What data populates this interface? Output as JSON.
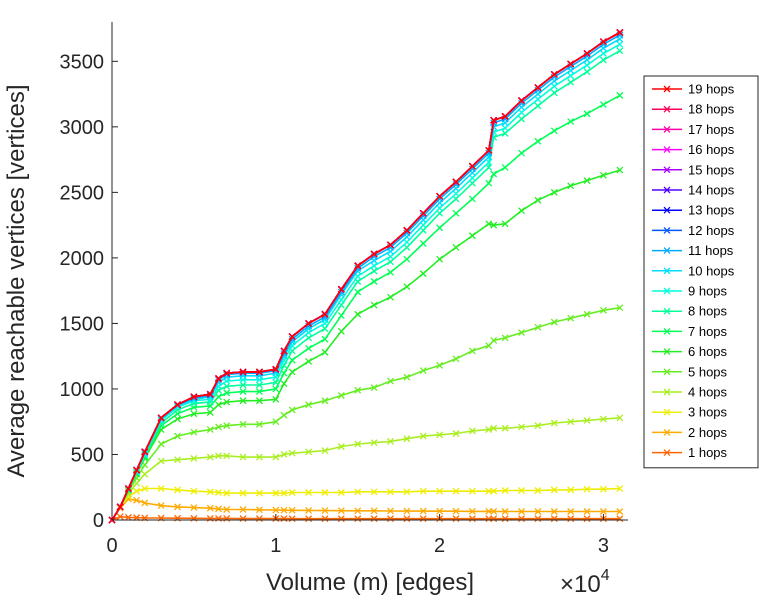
{
  "chart_data": {
    "type": "line",
    "xlabel": "Volume (m) [edges]",
    "ylabel": "Average reachable vertices [vertices]",
    "x_exponent_label": "×10",
    "x_exponent_power": "4",
    "xlim": [
      0,
      31500
    ],
    "ylim": [
      0,
      3800
    ],
    "xticks": [
      0,
      10000,
      20000,
      30000
    ],
    "xtick_labels": [
      "0",
      "1",
      "2",
      "3"
    ],
    "yticks": [
      0,
      500,
      1000,
      1500,
      2000,
      2500,
      3000,
      3500
    ],
    "ytick_labels": [
      "0",
      "500",
      "1000",
      "1500",
      "2000",
      "2500",
      "3000",
      "3500"
    ],
    "grid": false,
    "legend_position": "right",
    "marker": "x",
    "x": [
      0,
      500,
      1000,
      1500,
      2000,
      3000,
      4000,
      5000,
      6000,
      6500,
      7000,
      8000,
      9000,
      10000,
      10500,
      11000,
      12000,
      13000,
      14000,
      15000,
      16000,
      17000,
      18000,
      19000,
      20000,
      21000,
      22000,
      23000,
      23300,
      24000,
      25000,
      26000,
      27000,
      28000,
      29000,
      30000,
      31000
    ],
    "series": [
      {
        "name": "19 hops",
        "color": "#ff0000",
        "values": [
          0,
          100,
          240,
          380,
          520,
          780,
          880,
          940,
          960,
          1080,
          1120,
          1130,
          1130,
          1150,
          1290,
          1400,
          1500,
          1570,
          1760,
          1940,
          2030,
          2100,
          2210,
          2340,
          2470,
          2580,
          2700,
          2820,
          3050,
          3080,
          3200,
          3300,
          3400,
          3480,
          3560,
          3650,
          3720
        ]
      },
      {
        "name": "18 hops",
        "color": "#ff0055",
        "values": [
          0,
          100,
          240,
          380,
          520,
          780,
          880,
          940,
          960,
          1080,
          1120,
          1130,
          1130,
          1150,
          1290,
          1400,
          1500,
          1570,
          1760,
          1940,
          2030,
          2100,
          2210,
          2340,
          2470,
          2580,
          2700,
          2820,
          3050,
          3080,
          3200,
          3300,
          3400,
          3480,
          3560,
          3650,
          3720
        ]
      },
      {
        "name": "17 hops",
        "color": "#ff00aa",
        "values": [
          0,
          100,
          240,
          380,
          520,
          780,
          880,
          940,
          960,
          1080,
          1120,
          1130,
          1130,
          1150,
          1290,
          1400,
          1500,
          1570,
          1760,
          1940,
          2030,
          2100,
          2210,
          2340,
          2470,
          2580,
          2700,
          2820,
          3050,
          3080,
          3200,
          3300,
          3400,
          3480,
          3560,
          3650,
          3720
        ]
      },
      {
        "name": "16 hops",
        "color": "#ff00ff",
        "values": [
          0,
          100,
          240,
          380,
          520,
          780,
          880,
          940,
          960,
          1080,
          1120,
          1130,
          1130,
          1150,
          1290,
          1400,
          1500,
          1570,
          1760,
          1940,
          2030,
          2100,
          2210,
          2340,
          2470,
          2580,
          2700,
          2820,
          3050,
          3080,
          3200,
          3300,
          3400,
          3480,
          3560,
          3650,
          3720
        ]
      },
      {
        "name": "15 hops",
        "color": "#aa00ff",
        "values": [
          0,
          100,
          240,
          380,
          520,
          780,
          880,
          940,
          960,
          1080,
          1120,
          1130,
          1130,
          1150,
          1290,
          1400,
          1500,
          1570,
          1760,
          1940,
          2030,
          2100,
          2210,
          2340,
          2470,
          2580,
          2700,
          2820,
          3050,
          3080,
          3200,
          3300,
          3400,
          3480,
          3560,
          3650,
          3720
        ]
      },
      {
        "name": "14 hops",
        "color": "#5500ff",
        "values": [
          0,
          100,
          240,
          380,
          520,
          780,
          880,
          940,
          960,
          1080,
          1120,
          1130,
          1130,
          1150,
          1290,
          1400,
          1500,
          1570,
          1760,
          1940,
          2030,
          2100,
          2210,
          2340,
          2470,
          2580,
          2700,
          2820,
          3050,
          3080,
          3200,
          3300,
          3400,
          3480,
          3560,
          3650,
          3720
        ]
      },
      {
        "name": "13 hops",
        "color": "#0000ff",
        "values": [
          0,
          100,
          240,
          380,
          520,
          780,
          880,
          940,
          960,
          1080,
          1120,
          1130,
          1130,
          1150,
          1290,
          1400,
          1500,
          1570,
          1760,
          1940,
          2030,
          2100,
          2210,
          2340,
          2470,
          2580,
          2700,
          2820,
          3050,
          3080,
          3200,
          3300,
          3400,
          3480,
          3560,
          3650,
          3720
        ]
      },
      {
        "name": "12 hops",
        "color": "#0055ff",
        "values": [
          0,
          100,
          240,
          380,
          520,
          780,
          880,
          940,
          960,
          1080,
          1120,
          1130,
          1130,
          1150,
          1290,
          1400,
          1500,
          1570,
          1760,
          1940,
          2030,
          2100,
          2210,
          2340,
          2470,
          2580,
          2700,
          2820,
          3050,
          3080,
          3200,
          3300,
          3400,
          3480,
          3560,
          3650,
          3720
        ]
      },
      {
        "name": "11 hops",
        "color": "#00aaff",
        "values": [
          0,
          100,
          240,
          380,
          520,
          780,
          880,
          930,
          950,
          1070,
          1110,
          1120,
          1120,
          1140,
          1270,
          1380,
          1480,
          1550,
          1740,
          1920,
          2010,
          2080,
          2190,
          2320,
          2450,
          2560,
          2680,
          2800,
          3030,
          3060,
          3180,
          3280,
          3380,
          3460,
          3540,
          3630,
          3700
        ]
      },
      {
        "name": "10 hops",
        "color": "#00ddff",
        "values": [
          0,
          100,
          240,
          380,
          510,
          770,
          870,
          920,
          940,
          1050,
          1090,
          1100,
          1100,
          1120,
          1250,
          1360,
          1460,
          1530,
          1720,
          1900,
          1980,
          2050,
          2160,
          2290,
          2420,
          2530,
          2650,
          2770,
          3000,
          3030,
          3150,
          3250,
          3350,
          3430,
          3510,
          3600,
          3670
        ]
      },
      {
        "name": "9 hops",
        "color": "#00ffdd",
        "values": [
          0,
          100,
          240,
          370,
          500,
          760,
          860,
          910,
          920,
          1020,
          1060,
          1070,
          1070,
          1090,
          1220,
          1330,
          1430,
          1500,
          1680,
          1860,
          1940,
          2010,
          2120,
          2250,
          2380,
          2490,
          2610,
          2730,
          2960,
          2990,
          3110,
          3210,
          3310,
          3390,
          3470,
          3560,
          3630
        ]
      },
      {
        "name": "8 hops",
        "color": "#00ff99",
        "values": [
          0,
          100,
          230,
          360,
          490,
          740,
          840,
          890,
          900,
          990,
          1020,
          1030,
          1030,
          1050,
          1180,
          1290,
          1390,
          1460,
          1640,
          1820,
          1900,
          1970,
          2080,
          2210,
          2340,
          2450,
          2570,
          2690,
          2920,
          2950,
          3060,
          3160,
          3260,
          3340,
          3420,
          3510,
          3580
        ]
      },
      {
        "name": "7 hops",
        "color": "#00ff55",
        "values": [
          0,
          100,
          230,
          360,
          480,
          720,
          810,
          860,
          870,
          940,
          970,
          980,
          980,
          1000,
          1120,
          1220,
          1310,
          1380,
          1560,
          1740,
          1820,
          1890,
          1990,
          2110,
          2230,
          2340,
          2450,
          2570,
          2640,
          2690,
          2800,
          2890,
          2970,
          3040,
          3100,
          3170,
          3240
        ]
      },
      {
        "name": "6 hops",
        "color": "#22ee22",
        "values": [
          0,
          100,
          230,
          350,
          470,
          690,
          770,
          810,
          820,
          880,
          900,
          910,
          910,
          920,
          1040,
          1130,
          1210,
          1280,
          1440,
          1570,
          1640,
          1700,
          1780,
          1880,
          1990,
          2080,
          2170,
          2260,
          2250,
          2260,
          2360,
          2440,
          2500,
          2550,
          2590,
          2630,
          2670
        ]
      },
      {
        "name": "5 hops",
        "color": "#66ee22",
        "values": [
          0,
          100,
          220,
          320,
          420,
          580,
          640,
          670,
          690,
          710,
          720,
          730,
          730,
          750,
          800,
          840,
          880,
          910,
          950,
          990,
          1010,
          1060,
          1090,
          1140,
          1180,
          1230,
          1290,
          1330,
          1370,
          1390,
          1430,
          1470,
          1510,
          1540,
          1570,
          1600,
          1620
        ]
      },
      {
        "name": "4 hops",
        "color": "#aaee22",
        "values": [
          0,
          100,
          200,
          280,
          350,
          450,
          460,
          470,
          480,
          490,
          490,
          480,
          480,
          480,
          500,
          510,
          520,
          530,
          560,
          580,
          590,
          600,
          620,
          640,
          650,
          660,
          680,
          690,
          700,
          700,
          710,
          720,
          740,
          750,
          760,
          770,
          780
        ]
      },
      {
        "name": "3 hops",
        "color": "#eeee00",
        "values": [
          0,
          100,
          180,
          220,
          240,
          240,
          230,
          220,
          215,
          210,
          205,
          205,
          205,
          205,
          205,
          210,
          210,
          210,
          210,
          215,
          215,
          215,
          215,
          220,
          220,
          220,
          220,
          220,
          220,
          225,
          225,
          225,
          230,
          230,
          235,
          235,
          240
        ]
      },
      {
        "name": "2 hops",
        "color": "#ffaa00",
        "values": [
          0,
          90,
          160,
          150,
          130,
          110,
          100,
          95,
          90,
          85,
          80,
          80,
          78,
          76,
          75,
          74,
          73,
          72,
          71,
          70,
          70,
          69,
          68,
          68,
          67,
          67,
          66,
          66,
          66,
          65,
          65,
          65,
          65,
          65,
          65,
          65,
          65
        ]
      },
      {
        "name": "1 hops",
        "color": "#ff6600",
        "values": [
          0,
          25,
          20,
          18,
          16,
          15,
          14,
          13,
          12,
          12,
          12,
          11,
          11,
          11,
          11,
          10,
          10,
          10,
          10,
          10,
          10,
          10,
          10,
          10,
          10,
          10,
          10,
          10,
          10,
          10,
          10,
          10,
          10,
          10,
          10,
          10,
          10
        ]
      }
    ]
  }
}
